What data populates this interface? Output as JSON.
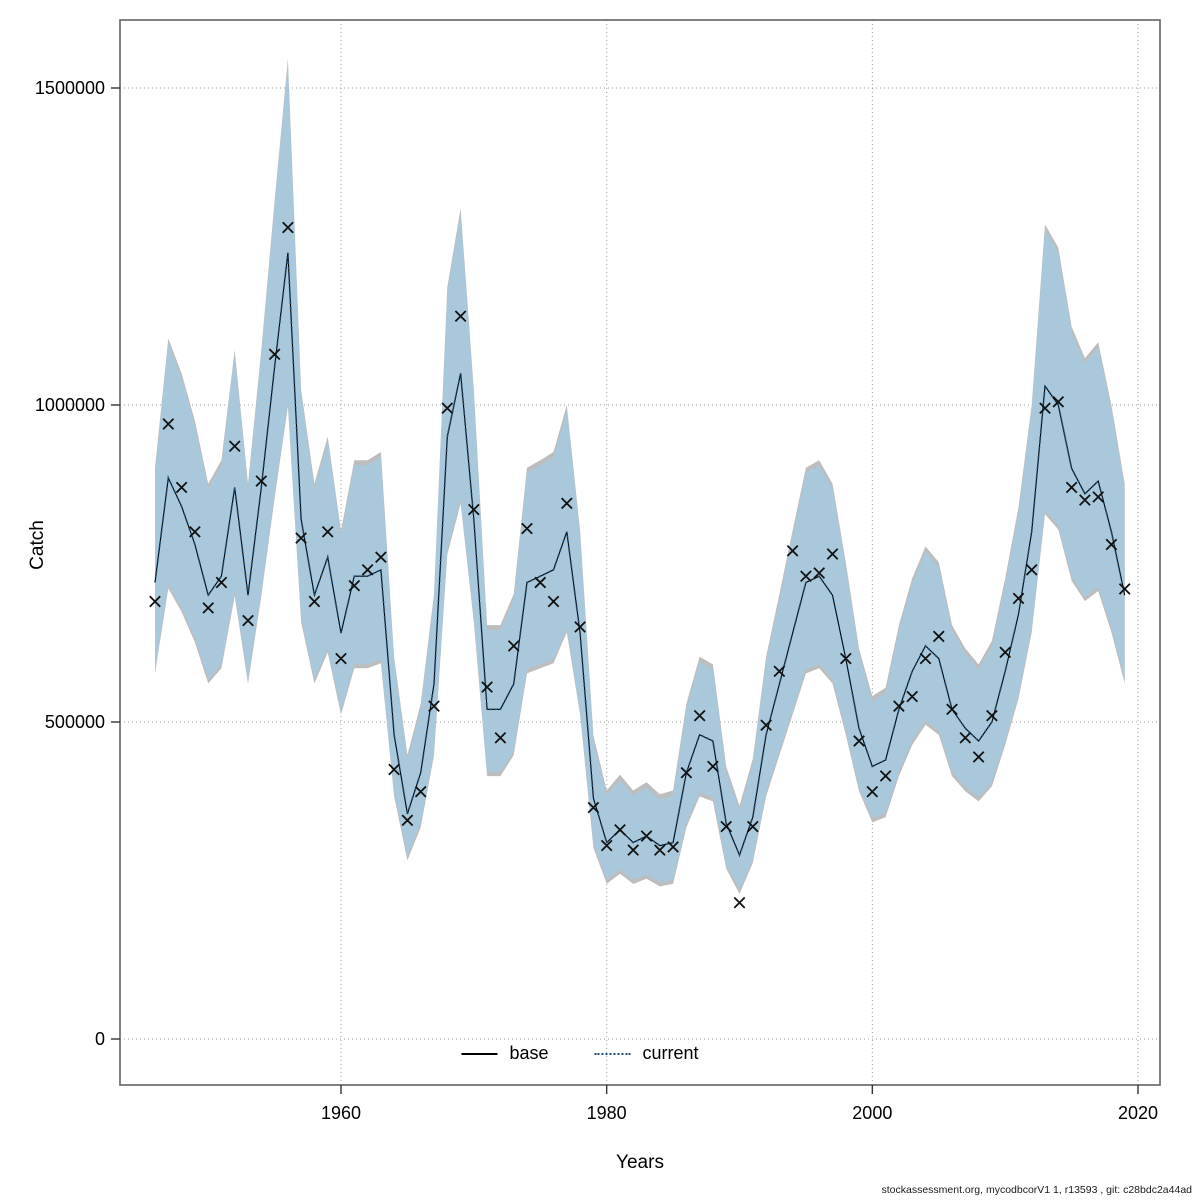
{
  "figure": {
    "y_axis_label": "Catch",
    "x_axis_label": "Years",
    "footer": "stockassessment.org, mycodbcorV1 1, r13593 , git: c28bdc2a44ad",
    "legend": {
      "base_label": "base",
      "current_label": "current"
    }
  },
  "chart_data": {
    "type": "line",
    "title": "",
    "xlabel": "Years",
    "ylabel": "Catch",
    "grid": true,
    "legend_position": "bottom-center",
    "xlim": [
      1944.5,
      2021.7
    ],
    "ylim": [
      0,
      1607000
    ],
    "x_ticks": [
      1960,
      1980,
      2000,
      2020
    ],
    "y_ticks": [
      {
        "value": 0,
        "label": "0"
      },
      {
        "value": 500000,
        "label": "500000"
      },
      {
        "value": 1000000,
        "label": "1000000"
      },
      {
        "value": 1500000,
        "label": "1500000"
      }
    ],
    "colors": {
      "band": "#a9c8db",
      "band_edge": "#bdbdbd",
      "current_line": "#1c4f7c",
      "base_line": "#000000",
      "marker": "#111111",
      "grid": "#9c9c9c",
      "frame": "#595959"
    },
    "years": [
      1946,
      1947,
      1948,
      1949,
      1950,
      1951,
      1952,
      1953,
      1954,
      1955,
      1956,
      1957,
      1958,
      1959,
      1960,
      1961,
      1962,
      1963,
      1964,
      1965,
      1966,
      1967,
      1968,
      1969,
      1970,
      1971,
      1972,
      1973,
      1974,
      1975,
      1976,
      1977,
      1978,
      1979,
      1980,
      1981,
      1982,
      1983,
      1984,
      1985,
      1986,
      1987,
      1988,
      1989,
      1990,
      1991,
      1992,
      1993,
      1994,
      1995,
      1996,
      1997,
      1998,
      1999,
      2000,
      2001,
      2002,
      2003,
      2004,
      2005,
      2006,
      2007,
      2008,
      2009,
      2010,
      2011,
      2012,
      2013,
      2014,
      2015,
      2016,
      2017,
      2018,
      2019
    ],
    "series": [
      {
        "name": "base",
        "style": "solid",
        "color": "#000000",
        "values": [
          720000,
          885000,
          840000,
          780000,
          700000,
          730000,
          870000,
          700000,
          870000,
          1060000,
          1240000,
          820000,
          700000,
          760000,
          640000,
          730000,
          730000,
          740000,
          480000,
          355000,
          420000,
          560000,
          950000,
          1050000,
          820000,
          520000,
          520000,
          560000,
          720000,
          730000,
          740000,
          800000,
          640000,
          380000,
          310000,
          330000,
          310000,
          320000,
          305000,
          310000,
          420000,
          480000,
          470000,
          340000,
          290000,
          350000,
          480000,
          560000,
          640000,
          720000,
          730000,
          700000,
          600000,
          490000,
          430000,
          440000,
          520000,
          580000,
          620000,
          600000,
          520000,
          490000,
          470000,
          500000,
          580000,
          670000,
          800000,
          1030000,
          1000000,
          900000,
          860000,
          880000,
          800000,
          700000
        ]
      },
      {
        "name": "current",
        "style": "dotted",
        "color": "#1c4f7c",
        "values": [
          720000,
          885000,
          840000,
          780000,
          700000,
          730000,
          870000,
          700000,
          870000,
          1060000,
          1240000,
          820000,
          700000,
          760000,
          640000,
          730000,
          730000,
          740000,
          480000,
          355000,
          420000,
          560000,
          950000,
          1050000,
          820000,
          520000,
          520000,
          560000,
          720000,
          730000,
          740000,
          800000,
          640000,
          380000,
          310000,
          330000,
          310000,
          320000,
          305000,
          310000,
          420000,
          480000,
          470000,
          340000,
          290000,
          350000,
          480000,
          560000,
          640000,
          720000,
          730000,
          700000,
          600000,
          490000,
          430000,
          440000,
          520000,
          580000,
          620000,
          600000,
          520000,
          490000,
          470000,
          500000,
          580000,
          670000,
          800000,
          1030000,
          1000000,
          900000,
          860000,
          880000,
          800000,
          700000
        ]
      }
    ],
    "band": {
      "name": "confidence-band",
      "upper": [
        893000,
        1097000,
        1042000,
        967000,
        868000,
        905000,
        1079000,
        868000,
        1079000,
        1314000,
        1538000,
        1017000,
        868000,
        942000,
        794000,
        905000,
        905000,
        918000,
        595000,
        440000,
        521000,
        694000,
        1178000,
        1302000,
        1017000,
        645000,
        645000,
        694000,
        893000,
        905000,
        918000,
        992000,
        794000,
        471000,
        384000,
        409000,
        384000,
        397000,
        378000,
        384000,
        521000,
        595000,
        583000,
        422000,
        360000,
        434000,
        595000,
        694000,
        794000,
        893000,
        905000,
        868000,
        744000,
        608000,
        533000,
        546000,
        645000,
        719000,
        769000,
        744000,
        645000,
        608000,
        583000,
        620000,
        719000,
        831000,
        992000,
        1277000,
        1240000,
        1116000,
        1066000,
        1091000,
        992000,
        868000
      ],
      "lower": [
        583000,
        717000,
        680000,
        632000,
        567000,
        591000,
        705000,
        567000,
        705000,
        859000,
        1004000,
        664000,
        567000,
        616000,
        518000,
        591000,
        591000,
        599000,
        389000,
        288000,
        340000,
        454000,
        770000,
        851000,
        664000,
        421000,
        421000,
        454000,
        583000,
        591000,
        599000,
        648000,
        518000,
        308000,
        251000,
        267000,
        251000,
        259000,
        247000,
        251000,
        340000,
        389000,
        381000,
        275000,
        235000,
        284000,
        389000,
        454000,
        518000,
        583000,
        591000,
        567000,
        486000,
        397000,
        348000,
        356000,
        421000,
        470000,
        502000,
        486000,
        421000,
        397000,
        381000,
        405000,
        470000,
        543000,
        648000,
        834000,
        810000,
        729000,
        697000,
        713000,
        648000,
        567000
      ]
    },
    "markers": {
      "name": "observed-catch",
      "shape": "x",
      "values": [
        690000,
        970000,
        870000,
        800000,
        680000,
        720000,
        935000,
        660000,
        880000,
        1080000,
        1280000,
        790000,
        690000,
        800000,
        600000,
        715000,
        740000,
        760000,
        425000,
        345000,
        390000,
        525000,
        995000,
        1140000,
        835000,
        555000,
        475000,
        620000,
        805000,
        720000,
        690000,
        845000,
        650000,
        365000,
        305000,
        330000,
        298000,
        320000,
        298000,
        303000,
        420000,
        510000,
        430000,
        335000,
        215000,
        335000,
        495000,
        580000,
        770000,
        730000,
        735000,
        765000,
        600000,
        470000,
        390000,
        415000,
        525000,
        540000,
        600000,
        635000,
        520000,
        475000,
        445000,
        510000,
        610000,
        695000,
        740000,
        995000,
        1005000,
        870000,
        850000,
        855000,
        780000,
        710000
      ]
    }
  }
}
